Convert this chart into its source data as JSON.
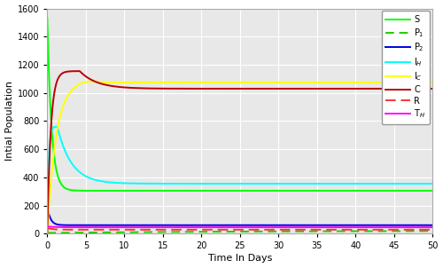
{
  "xlabel": "Time In Days",
  "ylabel": "Intial Population",
  "xlim": [
    0,
    50
  ],
  "ylim": [
    0,
    1600
  ],
  "yticks": [
    0,
    200,
    400,
    600,
    800,
    1000,
    1200,
    1400,
    1600
  ],
  "xticks": [
    0,
    5,
    10,
    15,
    20,
    25,
    30,
    35,
    40,
    45,
    50
  ],
  "lines": {
    "S": {
      "color": "#00FF00",
      "linestyle": "-",
      "lw": 1.4
    },
    "P1": {
      "color": "#22CC00",
      "linestyle": "--",
      "lw": 1.4
    },
    "P2": {
      "color": "#0000DD",
      "linestyle": "-",
      "lw": 1.4
    },
    "IH": {
      "color": "#00FFFF",
      "linestyle": "-",
      "lw": 1.4
    },
    "IC": {
      "color": "#FFFF00",
      "linestyle": "-",
      "lw": 1.4
    },
    "C": {
      "color": "#BB0000",
      "linestyle": "-",
      "lw": 1.4
    },
    "R": {
      "color": "#FF3333",
      "linestyle": "--",
      "lw": 1.4
    },
    "TH": {
      "color": "#FF00FF",
      "linestyle": "-",
      "lw": 1.4
    }
  },
  "legend_labels": [
    "S",
    "P$_1$",
    "P$_2$",
    "I$_H$",
    "I$_C$",
    "C",
    "R",
    "T$_H$"
  ],
  "background_color": "#e8e8e8",
  "grid_color": "#ffffff",
  "fig_bg": "#ffffff"
}
